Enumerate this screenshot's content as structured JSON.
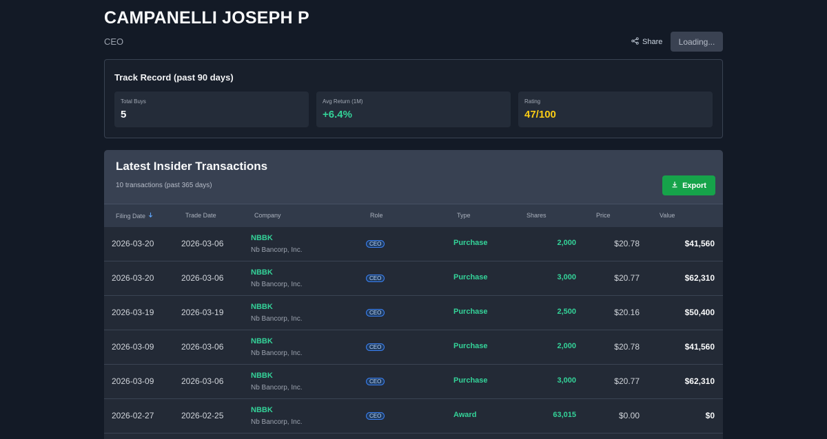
{
  "header": {
    "name": "CAMPANELLI JOSEPH P",
    "title": "CEO",
    "share_label": "Share",
    "loading_label": "Loading..."
  },
  "track_record": {
    "title": "Track Record (past 90 days)",
    "stats": [
      {
        "label": "Total Buys",
        "value": "5",
        "color": "#f9fafb"
      },
      {
        "label": "Avg Return (1M)",
        "value": "+6.4%",
        "color": "#34d399"
      },
      {
        "label": "Rating",
        "value": "47/100",
        "color": "#facc15"
      }
    ]
  },
  "transactions": {
    "title": "Latest Insider Transactions",
    "subtitle": "10 transactions (past 365 days)",
    "export_label": "Export",
    "columns": [
      "Filing Date",
      "Trade Date",
      "Company",
      "Role",
      "Type",
      "Shares",
      "Price",
      "Value"
    ],
    "sorted_column": "Filing Date",
    "sort_direction": "descending",
    "rows": [
      {
        "filing_date": "2026-03-20",
        "trade_date": "2026-03-06",
        "ticker": "NBBK",
        "company": "Nb Bancorp, Inc.",
        "role": "CEO",
        "type": "Purchase",
        "shares": "2,000",
        "price": "$20.78",
        "value": "$41,560"
      },
      {
        "filing_date": "2026-03-20",
        "trade_date": "2026-03-06",
        "ticker": "NBBK",
        "company": "Nb Bancorp, Inc.",
        "role": "CEO",
        "type": "Purchase",
        "shares": "3,000",
        "price": "$20.77",
        "value": "$62,310"
      },
      {
        "filing_date": "2026-03-19",
        "trade_date": "2026-03-19",
        "ticker": "NBBK",
        "company": "Nb Bancorp, Inc.",
        "role": "CEO",
        "type": "Purchase",
        "shares": "2,500",
        "price": "$20.16",
        "value": "$50,400"
      },
      {
        "filing_date": "2026-03-09",
        "trade_date": "2026-03-06",
        "ticker": "NBBK",
        "company": "Nb Bancorp, Inc.",
        "role": "CEO",
        "type": "Purchase",
        "shares": "2,000",
        "price": "$20.78",
        "value": "$41,560"
      },
      {
        "filing_date": "2026-03-09",
        "trade_date": "2026-03-06",
        "ticker": "NBBK",
        "company": "Nb Bancorp, Inc.",
        "role": "CEO",
        "type": "Purchase",
        "shares": "3,000",
        "price": "$20.77",
        "value": "$62,310"
      },
      {
        "filing_date": "2026-02-27",
        "trade_date": "2026-02-25",
        "ticker": "NBBK",
        "company": "Nb Bancorp, Inc.",
        "role": "CEO",
        "type": "Award",
        "shares": "63,015",
        "price": "$0.00",
        "value": "$0"
      }
    ]
  },
  "icons": {
    "share": "share-icon",
    "export": "download-icon",
    "sort": "arrow-down-icon"
  },
  "colors": {
    "positive": "#34d399",
    "rating": "#facc15",
    "export_button": "#16a34a",
    "role_badge": "#3b82f6"
  }
}
